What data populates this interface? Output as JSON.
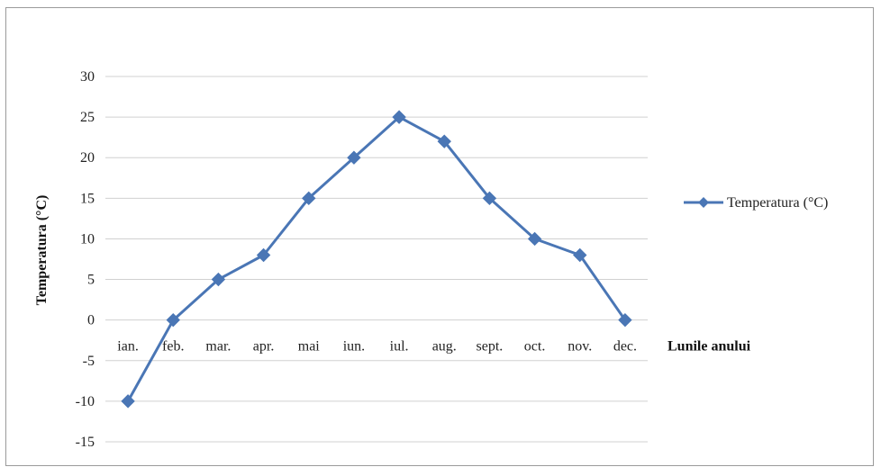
{
  "chart_data": {
    "type": "line",
    "title": "",
    "xlabel": "Lunile anului",
    "ylabel": "Temperatura (°C)",
    "categories": [
      "ian.",
      "feb.",
      "mar.",
      "apr.",
      "mai",
      "iun.",
      "iul.",
      "aug.",
      "sept.",
      "oct.",
      "nov.",
      "dec."
    ],
    "series": [
      {
        "name": "Temperatura (°C)",
        "values": [
          -10,
          0,
          5,
          8,
          15,
          20,
          25,
          22,
          15,
          10,
          8,
          0
        ]
      }
    ],
    "ylim": [
      -15,
      30
    ],
    "yticks": [
      30,
      25,
      20,
      15,
      10,
      5,
      0,
      -5,
      -10,
      -15
    ],
    "grid": true,
    "legend_position": "right",
    "colors": {
      "series": "#4a76b5",
      "grid": "#d0d0d0"
    }
  }
}
